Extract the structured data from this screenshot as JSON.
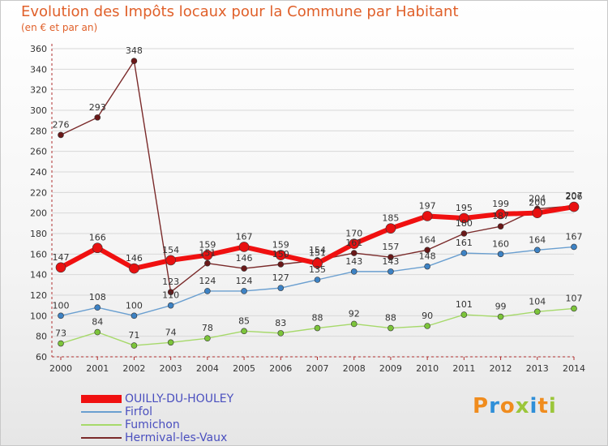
{
  "header": {
    "title": "Evolution des Impôts locaux pour la Commune par Habitant",
    "subtitle": "(en € et par an)"
  },
  "logo": {
    "text": "Proxiti",
    "colors": [
      "#f08c1e",
      "#2f8fd8",
      "#f08c1e",
      "#9bc63a",
      "#2f8fd8",
      "#f08c1e",
      "#9bc63a"
    ]
  },
  "colors": {
    "axis": "#b03030",
    "grid": "#d8d8d8",
    "label": "#333333",
    "legend_text": "#4a4fbf"
  },
  "chart_data": {
    "type": "line",
    "x": [
      "2000",
      "2001",
      "2002",
      "2003",
      "2004",
      "2005",
      "2006",
      "2007",
      "2008",
      "2009",
      "2010",
      "2011",
      "2012",
      "2013",
      "2014"
    ],
    "ylim": [
      60,
      360
    ],
    "yticks": [
      "60",
      "80",
      "100",
      "120",
      "140",
      "160",
      "180",
      "200",
      "220",
      "240",
      "260",
      "280",
      "300",
      "320",
      "340",
      "360"
    ],
    "grid": true,
    "legend_position": "bottom-left",
    "series": [
      {
        "name": "Hermival-les-Vaux",
        "color": "#7a2a2a",
        "marker": "#6a1818",
        "width": 1.4,
        "radius": 3.5,
        "values": [
          276,
          293,
          348,
          123,
          151,
          146,
          150,
          154,
          161,
          157,
          164,
          180,
          187,
          204,
          207
        ],
        "labels": [
          "276",
          "293",
          "348",
          "123",
          "151",
          "146",
          "150",
          "154",
          "161",
          "157",
          "164",
          "180",
          "187",
          "204",
          "207"
        ]
      },
      {
        "name": "Firfol",
        "color": "#6a9fd0",
        "marker": "#3d82c4",
        "width": 1.4,
        "radius": 3.5,
        "values": [
          100,
          108,
          100,
          110,
          124,
          124,
          127,
          135,
          143,
          143,
          148,
          161,
          160,
          164,
          167
        ],
        "labels": [
          "100",
          "108",
          "100",
          "110",
          "124",
          "124",
          "127",
          "135",
          "143",
          "143",
          "148",
          "161",
          "160",
          "164",
          "167"
        ]
      },
      {
        "name": "Fumichon",
        "color": "#a6d96a",
        "marker": "#7cc43a",
        "width": 1.4,
        "radius": 3.5,
        "values": [
          73,
          84,
          71,
          74,
          78,
          85,
          83,
          88,
          92,
          88,
          90,
          101,
          99,
          104,
          107
        ],
        "labels": [
          "73",
          "84",
          "71",
          "74",
          "78",
          "85",
          "83",
          "88",
          "92",
          "88",
          "90",
          "101",
          "99",
          "104",
          "107"
        ]
      },
      {
        "name": "OUILLY-DU-HOULEY",
        "color": "#f01010",
        "marker": "#e81010",
        "width": 6,
        "radius": 6,
        "values": [
          147,
          166,
          146,
          154,
          159,
          167,
          159,
          151,
          170,
          185,
          197,
          195,
          199,
          200,
          206
        ],
        "labels": [
          "147",
          "166",
          "146",
          "154",
          "159",
          "167",
          "159",
          "151",
          "170",
          "185",
          "197",
          "195",
          "199",
          "200",
          "206"
        ]
      }
    ],
    "legend": [
      "OUILLY-DU-HOULEY",
      "Firfol",
      "Fumichon",
      "Hermival-les-Vaux"
    ]
  }
}
